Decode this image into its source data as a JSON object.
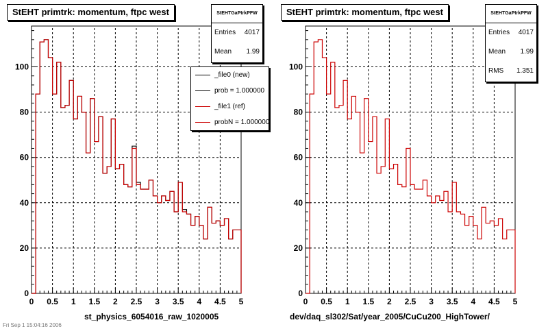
{
  "footer": "Fri Sep 1 15:04:16 2006",
  "pads": [
    {
      "title": "StEHT primtrk: momentum, ftpc west",
      "stats": {
        "name": "StEHTGaPtrkPFW",
        "rows": [
          {
            "label": "Entries",
            "value": "4017"
          },
          {
            "label": "Mean",
            "value": "1.99"
          }
        ]
      },
      "legend": [
        {
          "label": "_file0 (new)",
          "color": "#000000"
        },
        {
          "label": "prob = 1.000000",
          "color": "#000000"
        },
        {
          "label": "_file1 (ref)",
          "color": "#cc0000"
        },
        {
          "label": "probN = 1.000000",
          "color": "#cc0000"
        }
      ],
      "xtitle": "st_physics_6054016_raw_1020005"
    },
    {
      "title": "StEHT primtrk: momentum, ftpc west",
      "stats": {
        "name": "StEHTGaPtrkPFW",
        "rows": [
          {
            "label": "Entries",
            "value": "4017"
          },
          {
            "label": "Mean",
            "value": "1.99"
          },
          {
            "label": "RMS",
            "value": "1.351"
          }
        ]
      },
      "xtitle": "dev/daq_sl302/Sat/year_2005/CuCu200_HighTower/"
    }
  ],
  "chart_data": [
    {
      "type": "histogram",
      "title": "StEHT primtrk: momentum, ftpc west",
      "xlabel": "st_physics_6054016_raw_1020005",
      "xlim": [
        0,
        5
      ],
      "ylim": [
        0,
        118
      ],
      "xticks": [
        "0",
        "0.5",
        "1",
        "1.5",
        "2",
        "2.5",
        "3",
        "3.5",
        "4",
        "4.5",
        "5"
      ],
      "yticks": [
        "0",
        "20",
        "40",
        "60",
        "80",
        "100"
      ],
      "grid": true,
      "legend_position": "top-right",
      "bin_width": 0.1,
      "series": [
        {
          "name": "_file0 (new)",
          "color": "#000000",
          "values": [
            0,
            88,
            111,
            112,
            104,
            88,
            102,
            82,
            83,
            94,
            77,
            87,
            80,
            62,
            86,
            67,
            78,
            53,
            56,
            77,
            55,
            57,
            48,
            47,
            65,
            49,
            46,
            46,
            50,
            43,
            40,
            43,
            41,
            45,
            36,
            49,
            37,
            35,
            30,
            34,
            30,
            24,
            38,
            31,
            32,
            30,
            33,
            24,
            28,
            28
          ]
        },
        {
          "name": "_file1 (ref)",
          "color": "#cc0000",
          "values": [
            0,
            88,
            111,
            112,
            104,
            88,
            102,
            82,
            83,
            94,
            77,
            87,
            80,
            62,
            86,
            67,
            78,
            53,
            56,
            77,
            55,
            57,
            48,
            47,
            64,
            48,
            46,
            46,
            50,
            43,
            40,
            43,
            41,
            45,
            36,
            49,
            36,
            35,
            30,
            34,
            30,
            24,
            38,
            31,
            32,
            30,
            33,
            24,
            28,
            28
          ]
        }
      ]
    },
    {
      "type": "histogram",
      "title": "StEHT primtrk: momentum, ftpc west",
      "xlabel": "dev/daq_sl302/Sat/year_2005/CuCu200_HighTower/",
      "xlim": [
        0,
        5
      ],
      "ylim": [
        0,
        118
      ],
      "xticks": [
        "0",
        "0.5",
        "1",
        "1.5",
        "2",
        "2.5",
        "3",
        "3.5",
        "4",
        "4.5",
        "5"
      ],
      "yticks": [
        "0",
        "20",
        "40",
        "60",
        "80",
        "100"
      ],
      "grid": true,
      "bin_width": 0.1,
      "series": [
        {
          "color": "#cc0000",
          "values": [
            0,
            88,
            111,
            112,
            104,
            88,
            102,
            82,
            83,
            94,
            77,
            87,
            80,
            62,
            86,
            67,
            78,
            53,
            56,
            77,
            55,
            57,
            48,
            47,
            64,
            48,
            46,
            46,
            50,
            43,
            40,
            43,
            41,
            45,
            36,
            49,
            36,
            35,
            30,
            34,
            30,
            24,
            38,
            31,
            32,
            30,
            33,
            24,
            28,
            28
          ]
        }
      ]
    }
  ]
}
